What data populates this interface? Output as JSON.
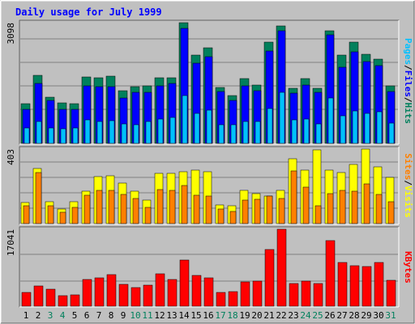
{
  "title": "Daily usage for July 1999",
  "colors": {
    "background": "#c0c0c0",
    "title": "#0000ff",
    "hits": "#00805c",
    "files": "#0000ff",
    "pages": "#00c0ff",
    "visits": "#ffff00",
    "sites": "#ff8000",
    "kbytes": "#ff0000",
    "weekend_day": "#00805c",
    "weekday": "#000000"
  },
  "chart_data": [
    {
      "type": "bar",
      "panel": "hits-files-pages",
      "ymax_label": "3098",
      "ylim": [
        0,
        3098
      ],
      "series_labels": [
        "Pages",
        "Files",
        "Hits"
      ],
      "categories": [
        "1",
        "2",
        "3",
        "4",
        "5",
        "6",
        "7",
        "8",
        "9",
        "10",
        "11",
        "12",
        "13",
        "14",
        "15",
        "16",
        "17",
        "18",
        "19",
        "20",
        "21",
        "22",
        "23",
        "24",
        "25",
        "26",
        "27",
        "28",
        "29",
        "30",
        "31"
      ],
      "series": [
        {
          "name": "Hits",
          "values": [
            1010,
            1750,
            1190,
            1040,
            1010,
            1700,
            1680,
            1720,
            1350,
            1460,
            1480,
            1680,
            1680,
            3100,
            2270,
            2450,
            1430,
            1230,
            1660,
            1500,
            2600,
            3020,
            1420,
            1660,
            1420,
            2880,
            2260,
            2600,
            2280,
            2160,
            1480
          ]
        },
        {
          "name": "Files",
          "values": [
            880,
            1530,
            1110,
            870,
            870,
            1480,
            1450,
            1460,
            1160,
            1300,
            1300,
            1470,
            1540,
            2950,
            2050,
            2220,
            1340,
            1100,
            1480,
            1350,
            2380,
            2900,
            1280,
            1500,
            1300,
            2780,
            1960,
            2350,
            2110,
            1990,
            1330
          ]
        },
        {
          "name": "Pages",
          "values": [
            390,
            570,
            400,
            380,
            390,
            600,
            560,
            590,
            500,
            480,
            560,
            620,
            660,
            1230,
            760,
            860,
            470,
            470,
            560,
            560,
            900,
            1300,
            600,
            620,
            500,
            1160,
            700,
            840,
            760,
            820,
            530
          ]
        }
      ]
    },
    {
      "type": "bar",
      "panel": "visits-sites",
      "ymax_label": "403",
      "ylim": [
        0,
        403
      ],
      "series_labels": [
        "Sites",
        "Visits"
      ],
      "categories": [
        "1",
        "2",
        "3",
        "4",
        "5",
        "6",
        "7",
        "8",
        "9",
        "10",
        "11",
        "12",
        "13",
        "14",
        "15",
        "16",
        "17",
        "18",
        "19",
        "20",
        "21",
        "22",
        "23",
        "24",
        "25",
        "26",
        "27",
        "28",
        "29",
        "30",
        "31"
      ],
      "series": [
        {
          "name": "Visits",
          "values": [
            115,
            300,
            118,
            78,
            120,
            175,
            256,
            260,
            220,
            175,
            128,
            272,
            273,
            280,
            290,
            282,
            100,
            96,
            180,
            161,
            150,
            180,
            350,
            288,
            400,
            290,
            278,
            320,
            403,
            305,
            249
          ]
        },
        {
          "name": "Sites",
          "values": [
            97,
            275,
            95,
            60,
            88,
            155,
            180,
            178,
            158,
            137,
            87,
            185,
            180,
            206,
            155,
            150,
            77,
            66,
            128,
            130,
            148,
            136,
            285,
            196,
            96,
            163,
            178,
            175,
            215,
            158,
            118
          ]
        }
      ]
    },
    {
      "type": "bar",
      "panel": "kbytes",
      "ymax_label": "17041",
      "ylim": [
        0,
        17041
      ],
      "series_labels": [
        "KBytes"
      ],
      "categories": [
        "1",
        "2",
        "3",
        "4",
        "5",
        "6",
        "7",
        "8",
        "9",
        "10",
        "11",
        "12",
        "13",
        "14",
        "15",
        "16",
        "17",
        "18",
        "19",
        "20",
        "21",
        "22",
        "23",
        "24",
        "25",
        "26",
        "27",
        "28",
        "29",
        "30",
        "31"
      ],
      "series": [
        {
          "name": "KBytes",
          "values": [
            3100,
            4500,
            3800,
            2400,
            2600,
            5900,
            6200,
            7000,
            4800,
            4200,
            4600,
            7200,
            5900,
            10200,
            6900,
            6300,
            3100,
            3200,
            5400,
            5500,
            12500,
            17041,
            5100,
            5500,
            5100,
            14500,
            9600,
            9000,
            8700,
            9700,
            5800
          ]
        }
      ]
    }
  ],
  "day_labels": [
    "1",
    "2",
    "3",
    "4",
    "5",
    "6",
    "7",
    "8",
    "9",
    "10",
    "11",
    "12",
    "13",
    "14",
    "15",
    "16",
    "17",
    "18",
    "19",
    "20",
    "21",
    "22",
    "23",
    "24",
    "25",
    "26",
    "27",
    "28",
    "29",
    "30",
    "31"
  ],
  "weekend_days": [
    3,
    4,
    10,
    11,
    17,
    18,
    24,
    25,
    31
  ]
}
